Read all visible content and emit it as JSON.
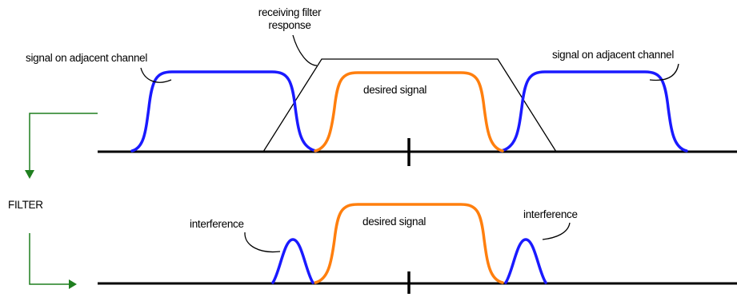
{
  "labels": {
    "filter_response": [
      "receiving filter",
      "response"
    ],
    "adjacent_left": "signal on adjacent channel",
    "adjacent_right": "signal on adjacent channel",
    "desired_top": "desired signal",
    "desired_bottom": "desired signal",
    "interference_left": "interference",
    "interference_right": "interference",
    "filter": "FILTER"
  },
  "colors": {
    "adjacent_signal": "#1a1aff",
    "desired_signal": "#ff7f0e",
    "flow_arrow": "#1f7f1f",
    "line": "#000000"
  }
}
